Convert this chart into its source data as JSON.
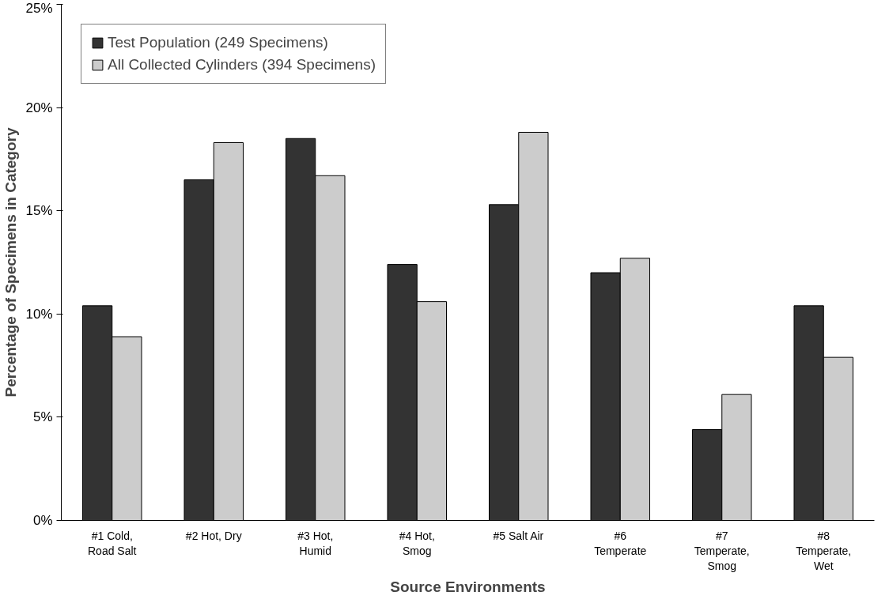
{
  "chart_data": {
    "type": "bar",
    "xlabel": "Source Environments",
    "ylabel": "Percentage of Specimens in Category",
    "categories": [
      "#1 Cold,\nRoad Salt",
      "#2 Hot, Dry",
      "#3 Hot,\nHumid",
      "#4 Hot,\nSmog",
      "#5 Salt Air",
      "#6\nTemperate",
      "#7\nTemperate,\nSmog",
      "#8\nTemperate,\nWet"
    ],
    "series": [
      {
        "name": "Test Population (249 Specimens)",
        "color": "#333333",
        "values": [
          10.4,
          16.5,
          18.5,
          12.4,
          15.3,
          12.0,
          4.4,
          10.4
        ]
      },
      {
        "name": "All Collected Cylinders (394 Specimens)",
        "color": "#cccccc",
        "values": [
          8.9,
          18.3,
          16.7,
          10.6,
          18.8,
          12.7,
          6.1,
          7.9
        ]
      }
    ],
    "ylim": [
      0,
      25
    ],
    "yticks": [
      {
        "value": 0,
        "label": "0%"
      },
      {
        "value": 5,
        "label": "5%"
      },
      {
        "value": 10,
        "label": "10%"
      },
      {
        "value": 15,
        "label": "15%"
      },
      {
        "value": 20,
        "label": "20%"
      },
      {
        "value": 25,
        "label": "25%"
      }
    ],
    "grid": false,
    "legend": "top left"
  }
}
